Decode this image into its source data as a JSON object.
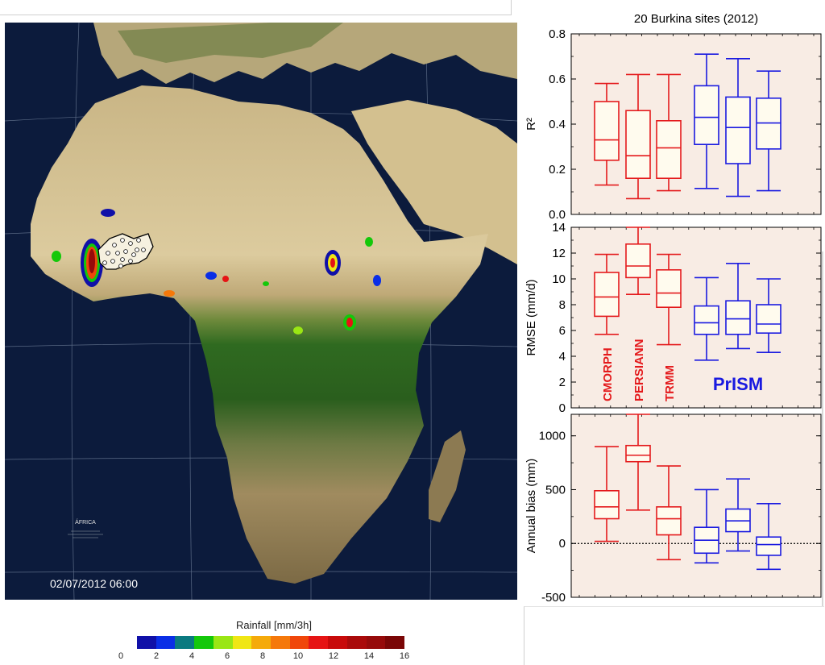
{
  "map": {
    "timestamp": "02/07/2012 06:00",
    "continent_label": "ÁFRICA",
    "colors": {
      "ocean": "#0b1a3a",
      "desert": "#d9c79c",
      "forest": "#2e6b1f",
      "savanna": "#8f8350",
      "graticule": "#6f7f99"
    }
  },
  "colorbar": {
    "title": "Rainfall [mm/3h]",
    "ticks": [
      "0",
      "2",
      "4",
      "6",
      "8",
      "10",
      "12",
      "14",
      "16"
    ],
    "colors": [
      "#1010a8",
      "#0a2ee6",
      "#0a7a80",
      "#14c80a",
      "#9ae614",
      "#f0e614",
      "#f5aa0a",
      "#f5780a",
      "#f0460a",
      "#e61414",
      "#c80a0a",
      "#aa0a0a",
      "#960a0a",
      "#7a0606"
    ]
  },
  "chart_data": [
    {
      "type": "box",
      "title": "20 Burkina sites (2012)",
      "ylabel": "R²",
      "ylim": [
        0,
        0.8
      ],
      "yticks": [
        "0.0",
        "0.2",
        "0.4",
        "0.6",
        "0.8"
      ],
      "background": "#f8ece4",
      "boxes": [
        {
          "product": "CMORPH",
          "color": "#e41a1c",
          "whisker_low": 0.13,
          "q1": 0.24,
          "median": 0.33,
          "q3": 0.5,
          "whisker_high": 0.58
        },
        {
          "product": "PERSIANN",
          "color": "#e41a1c",
          "whisker_low": 0.07,
          "q1": 0.16,
          "median": 0.26,
          "q3": 0.46,
          "whisker_high": 0.62
        },
        {
          "product": "TRMM",
          "color": "#e41a1c",
          "whisker_low": 0.105,
          "q1": 0.16,
          "median": 0.295,
          "q3": 0.415,
          "whisker_high": 0.62
        },
        {
          "product": "PrISM",
          "color": "#1a1ae0",
          "whisker_low": 0.115,
          "q1": 0.31,
          "median": 0.43,
          "q3": 0.57,
          "whisker_high": 0.71
        },
        {
          "product": "PrISM",
          "color": "#1a1ae0",
          "whisker_low": 0.08,
          "q1": 0.225,
          "median": 0.385,
          "q3": 0.52,
          "whisker_high": 0.69
        },
        {
          "product": "PrISM",
          "color": "#1a1ae0",
          "whisker_low": 0.105,
          "q1": 0.29,
          "median": 0.405,
          "q3": 0.515,
          "whisker_high": 0.635
        }
      ]
    },
    {
      "type": "box",
      "ylabel": "RMSE (mm/d)",
      "ylim": [
        0,
        14
      ],
      "yticks": [
        "0",
        "2",
        "4",
        "6",
        "8",
        "10",
        "12",
        "14"
      ],
      "background": "#f8ece4",
      "annotations": [
        {
          "text": "CMORPH",
          "color": "#e41a1c",
          "orientation": "vertical"
        },
        {
          "text": "PERSIANN",
          "color": "#e41a1c",
          "orientation": "vertical"
        },
        {
          "text": "TRMM",
          "color": "#e41a1c",
          "orientation": "vertical"
        },
        {
          "text": "PrISM",
          "color": "#1a1ae0",
          "orientation": "horizontal"
        }
      ],
      "boxes": [
        {
          "product": "CMORPH",
          "color": "#e41a1c",
          "whisker_low": 5.7,
          "q1": 7.1,
          "median": 8.6,
          "q3": 10.5,
          "whisker_high": 11.9
        },
        {
          "product": "PERSIANN",
          "color": "#e41a1c",
          "whisker_low": 8.8,
          "q1": 10.1,
          "median": 11.0,
          "q3": 12.7,
          "whisker_high": 14.0
        },
        {
          "product": "TRMM",
          "color": "#e41a1c",
          "whisker_low": 4.9,
          "q1": 7.8,
          "median": 8.9,
          "q3": 10.7,
          "whisker_high": 11.9
        },
        {
          "product": "PrISM",
          "color": "#1a1ae0",
          "whisker_low": 3.7,
          "q1": 5.7,
          "median": 6.6,
          "q3": 7.9,
          "whisker_high": 10.1
        },
        {
          "product": "PrISM",
          "color": "#1a1ae0",
          "whisker_low": 4.6,
          "q1": 5.7,
          "median": 6.9,
          "q3": 8.3,
          "whisker_high": 11.2
        },
        {
          "product": "PrISM",
          "color": "#1a1ae0",
          "whisker_low": 4.3,
          "q1": 5.8,
          "median": 6.5,
          "q3": 8.0,
          "whisker_high": 10.0
        }
      ]
    },
    {
      "type": "box",
      "ylabel": "Annual bias (mm)",
      "ylim": [
        -500,
        1200
      ],
      "yticks": [
        "-500",
        "0",
        "500",
        "1000"
      ],
      "ytick_values": [
        -500,
        0,
        500,
        1000
      ],
      "reference_line": 0,
      "background": "#f8ece4",
      "boxes": [
        {
          "product": "CMORPH",
          "color": "#e41a1c",
          "whisker_low": 20,
          "q1": 230,
          "median": 340,
          "q3": 490,
          "whisker_high": 900
        },
        {
          "product": "PERSIANN",
          "color": "#e41a1c",
          "whisker_low": 310,
          "q1": 760,
          "median": 820,
          "q3": 910,
          "whisker_high": 1200
        },
        {
          "product": "TRMM",
          "color": "#e41a1c",
          "whisker_low": -150,
          "q1": 80,
          "median": 230,
          "q3": 340,
          "whisker_high": 720
        },
        {
          "product": "PrISM",
          "color": "#1a1ae0",
          "whisker_low": -180,
          "q1": -90,
          "median": 30,
          "q3": 150,
          "whisker_high": 500
        },
        {
          "product": "PrISM",
          "color": "#1a1ae0",
          "whisker_low": -70,
          "q1": 110,
          "median": 210,
          "q3": 320,
          "whisker_high": 600
        },
        {
          "product": "PrISM",
          "color": "#1a1ae0",
          "whisker_low": -240,
          "q1": -110,
          "median": -10,
          "q3": 60,
          "whisker_high": 370
        }
      ]
    }
  ]
}
